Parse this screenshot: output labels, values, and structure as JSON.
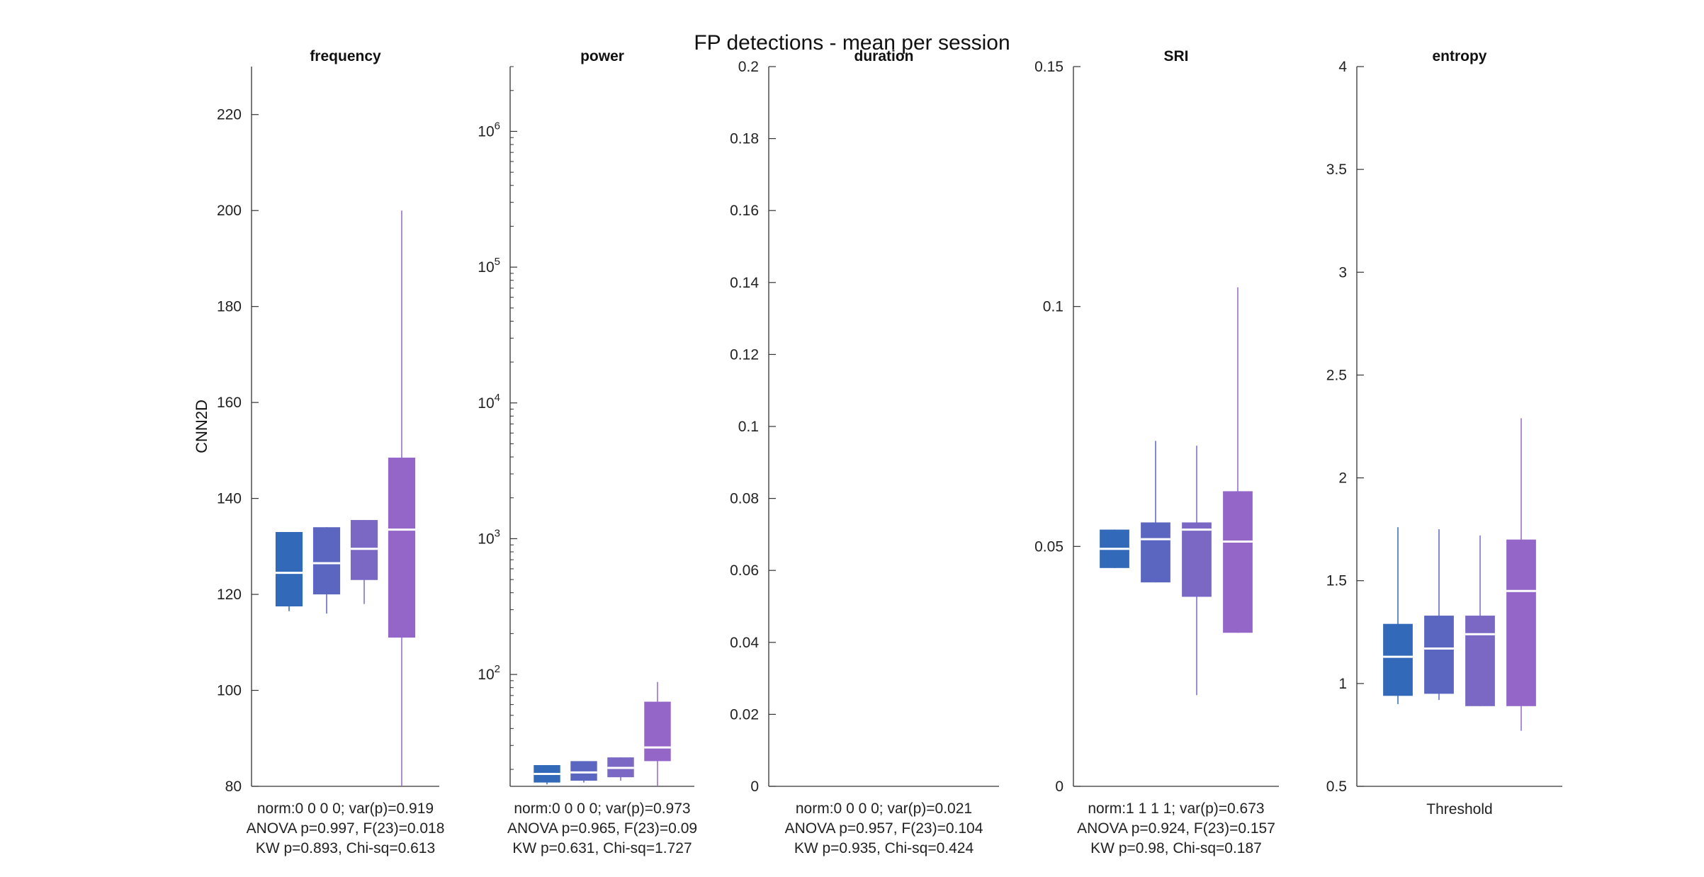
{
  "figure_title": "FP detections - mean per session",
  "ylabel": "CNN2D",
  "colors": {
    "box1": "#3269b8",
    "box2": "#5a66c0",
    "box3": "#7a68c4",
    "box4": "#9466c8",
    "median": "#ffffff",
    "axis": "#333333"
  },
  "chart_data": [
    {
      "type": "box",
      "title": "frequency",
      "ylabel": "CNN2D",
      "ylim": [
        80,
        230
      ],
      "yscale": "linear",
      "yticks": [
        80,
        100,
        120,
        140,
        160,
        180,
        200,
        220
      ],
      "ytick_labels": [
        "80",
        "100",
        "120",
        "140",
        "160",
        "180",
        "200",
        "220"
      ],
      "boxes": [
        {
          "q1": 117.5,
          "median": 124.5,
          "q3": 133,
          "whisker_low": 116.5,
          "whisker_high": 133
        },
        {
          "q1": 120,
          "median": 126.5,
          "q3": 134,
          "whisker_low": 116,
          "whisker_high": 134
        },
        {
          "q1": 123,
          "median": 129.5,
          "q3": 135.5,
          "whisker_low": 118,
          "whisker_high": 135.5
        },
        {
          "q1": 111,
          "median": 133.5,
          "q3": 148.5,
          "whisker_low": 80,
          "whisker_high": 200
        }
      ],
      "stats": [
        "norm:0  0  0  0; var(p)=0.919",
        "ANOVA p=0.997, F(23)=0.018",
        "KW p=0.893, Chi-sq=0.613"
      ]
    },
    {
      "type": "box",
      "title": "power",
      "ylim": [
        15,
        3000000
      ],
      "yscale": "log",
      "yticks": [
        100,
        1000,
        10000,
        100000,
        1000000
      ],
      "ytick_labels": [
        "10^2",
        "10^3",
        "10^4",
        "10^5",
        "10^6"
      ],
      "boxes": [
        {
          "q1": 16,
          "median": 18.5,
          "q3": 21.5,
          "whisker_low": 15.5,
          "whisker_high": 21.5
        },
        {
          "q1": 16.5,
          "median": 19,
          "q3": 23,
          "whisker_low": 16,
          "whisker_high": 23
        },
        {
          "q1": 17.5,
          "median": 20.5,
          "q3": 24.5,
          "whisker_low": 16.5,
          "whisker_high": 24.5
        },
        {
          "q1": 23,
          "median": 29,
          "q3": 63,
          "whisker_low": 15,
          "whisker_high": 88
        }
      ],
      "stats": [
        "norm:0  0  0  0; var(p)=0.973",
        "ANOVA p=0.965, F(23)=0.09",
        "KW p=0.631, Chi-sq=1.727"
      ]
    },
    {
      "type": "box",
      "title": "duration",
      "ylim": [
        0,
        0.2
      ],
      "yscale": "linear",
      "yticks": [
        0,
        0.02,
        0.04,
        0.06,
        0.08,
        0.1,
        0.12,
        0.14,
        0.16,
        0.18,
        0.2
      ],
      "ytick_labels": [
        "0",
        "0.02",
        "0.04",
        "0.06",
        "0.08",
        "0.1",
        "0.12",
        "0.14",
        "0.16",
        "0.18",
        "0.2"
      ],
      "boxes": [],
      "stats": [
        "norm:0  0  0  0; var(p)=0.021",
        "ANOVA p=0.957, F(23)=0.104",
        "KW p=0.935, Chi-sq=0.424"
      ]
    },
    {
      "type": "box",
      "title": "SRI",
      "ylim": [
        0,
        0.15
      ],
      "yscale": "linear",
      "yticks": [
        0,
        0.05,
        0.1,
        0.15
      ],
      "ytick_labels": [
        "0",
        "0.05",
        "0.1",
        "0.15"
      ],
      "boxes": [
        {
          "q1": 0.0455,
          "median": 0.0495,
          "q3": 0.0535,
          "whisker_low": 0.0455,
          "whisker_high": 0.0535
        },
        {
          "q1": 0.0425,
          "median": 0.0515,
          "q3": 0.055,
          "whisker_low": 0.0425,
          "whisker_high": 0.072
        },
        {
          "q1": 0.0395,
          "median": 0.0535,
          "q3": 0.055,
          "whisker_low": 0.019,
          "whisker_high": 0.071
        },
        {
          "q1": 0.032,
          "median": 0.051,
          "q3": 0.0615,
          "whisker_low": 0.032,
          "whisker_high": 0.104
        }
      ],
      "stats": [
        "norm:1  1  1  1; var(p)=0.673",
        "ANOVA p=0.924, F(23)=0.157",
        "KW p=0.98, Chi-sq=0.187"
      ]
    },
    {
      "type": "box",
      "title": "entropy",
      "xlabel": "Threshold",
      "ylim": [
        0.5,
        4
      ],
      "yscale": "linear",
      "yticks": [
        0.5,
        1,
        1.5,
        2,
        2.5,
        3,
        3.5,
        4
      ],
      "ytick_labels": [
        "0.5",
        "1",
        "1.5",
        "2",
        "2.5",
        "3",
        "3.5",
        "4"
      ],
      "boxes": [
        {
          "q1": 0.94,
          "median": 1.13,
          "q3": 1.29,
          "whisker_low": 0.9,
          "whisker_high": 1.76
        },
        {
          "q1": 0.95,
          "median": 1.17,
          "q3": 1.33,
          "whisker_low": 0.92,
          "whisker_high": 1.75
        },
        {
          "q1": 0.89,
          "median": 1.24,
          "q3": 1.33,
          "whisker_low": 0.89,
          "whisker_high": 1.72
        },
        {
          "q1": 0.89,
          "median": 1.45,
          "q3": 1.7,
          "whisker_low": 0.77,
          "whisker_high": 2.29
        }
      ],
      "stats": []
    }
  ]
}
